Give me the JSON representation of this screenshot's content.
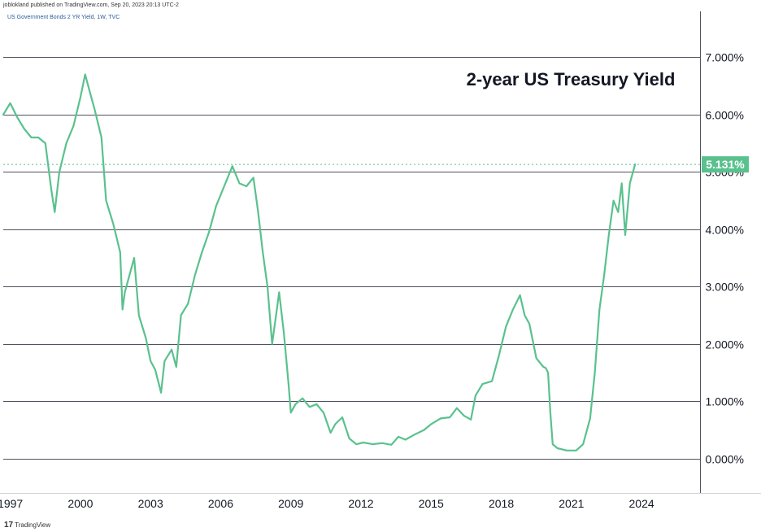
{
  "header": {
    "published_line": "joblokland published on TradingView.com, Sep 20, 2023 20:13 UTC-2",
    "symbol_line": "US Government Bonds 2 YR Yield, 1W, TVC"
  },
  "footer": {
    "brand_mark": "17",
    "brand": "TradingView"
  },
  "colors": {
    "line": "#5ac18e",
    "grid": "#50535e",
    "text": "#131722",
    "badge": "#5ac18e"
  },
  "chart_data": {
    "type": "line",
    "title": "2-year US Treasury Yield",
    "xlabel": "",
    "ylabel": "",
    "xlim": [
      1996.7,
      2026.5
    ],
    "ylim": [
      -0.6,
      7.8
    ],
    "x_ticks": [
      1997,
      2000,
      2003,
      2006,
      2009,
      2012,
      2015,
      2018,
      2021,
      2024
    ],
    "x_tick_labels": [
      "1997",
      "2000",
      "2003",
      "2006",
      "2009",
      "2012",
      "2015",
      "2018",
      "2021",
      "2024"
    ],
    "y_ticks": [
      0,
      1,
      2,
      3,
      4,
      5,
      6,
      7
    ],
    "y_tick_labels": [
      "0.000%",
      "1.000%",
      "2.000%",
      "3.000%",
      "4.000%",
      "5.000%",
      "6.000%",
      "7.000%"
    ],
    "last_value": 5.131,
    "last_value_label": "5.131%",
    "series": [
      {
        "name": "US 2Y Yield (weekly)",
        "x": [
          1996.7,
          1997.0,
          1997.3,
          1997.6,
          1997.9,
          1998.2,
          1998.5,
          1998.75,
          1998.9,
          1999.1,
          1999.4,
          1999.7,
          2000.0,
          2000.2,
          2000.4,
          2000.6,
          2000.9,
          2001.1,
          2001.4,
          2001.7,
          2001.8,
          2001.9,
          2002.1,
          2002.3,
          2002.5,
          2002.8,
          2003.0,
          2003.2,
          2003.45,
          2003.6,
          2003.9,
          2004.1,
          2004.3,
          2004.6,
          2004.9,
          2005.2,
          2005.5,
          2005.8,
          2006.1,
          2006.5,
          2006.8,
          2007.1,
          2007.4,
          2007.6,
          2007.8,
          2008.0,
          2008.2,
          2008.4,
          2008.5,
          2008.7,
          2008.9,
          2009.0,
          2009.2,
          2009.5,
          2009.8,
          2010.1,
          2010.4,
          2010.7,
          2010.9,
          2011.2,
          2011.5,
          2011.8,
          2012.1,
          2012.5,
          2012.9,
          2013.3,
          2013.6,
          2013.9,
          2014.3,
          2014.7,
          2015.0,
          2015.4,
          2015.8,
          2016.1,
          2016.4,
          2016.7,
          2016.9,
          2017.2,
          2017.6,
          2017.9,
          2018.2,
          2018.5,
          2018.8,
          2019.0,
          2019.2,
          2019.5,
          2019.8,
          2019.9,
          2020.0,
          2020.1,
          2020.2,
          2020.4,
          2020.8,
          2021.2,
          2021.5,
          2021.8,
          2022.0,
          2022.2,
          2022.4,
          2022.6,
          2022.8,
          2023.0,
          2023.15,
          2023.3,
          2023.5,
          2023.72
        ],
        "values": [
          6.0,
          6.2,
          5.95,
          5.75,
          5.6,
          5.6,
          5.5,
          4.7,
          4.3,
          5.0,
          5.5,
          5.8,
          6.3,
          6.7,
          6.4,
          6.1,
          5.6,
          4.5,
          4.1,
          3.6,
          2.6,
          2.9,
          3.2,
          3.5,
          2.5,
          2.1,
          1.7,
          1.55,
          1.15,
          1.7,
          1.9,
          1.6,
          2.5,
          2.7,
          3.2,
          3.6,
          3.95,
          4.4,
          4.7,
          5.1,
          4.8,
          4.75,
          4.9,
          4.3,
          3.6,
          3.0,
          2.0,
          2.6,
          2.9,
          2.2,
          1.3,
          0.8,
          0.95,
          1.05,
          0.9,
          0.95,
          0.8,
          0.45,
          0.6,
          0.72,
          0.35,
          0.25,
          0.28,
          0.25,
          0.27,
          0.24,
          0.38,
          0.33,
          0.42,
          0.5,
          0.6,
          0.7,
          0.72,
          0.88,
          0.75,
          0.68,
          1.1,
          1.3,
          1.35,
          1.8,
          2.3,
          2.6,
          2.85,
          2.5,
          2.35,
          1.75,
          1.6,
          1.58,
          1.5,
          0.8,
          0.25,
          0.18,
          0.14,
          0.14,
          0.25,
          0.7,
          1.5,
          2.6,
          3.2,
          3.9,
          4.5,
          4.3,
          4.8,
          3.9,
          4.8,
          5.131
        ]
      }
    ]
  }
}
